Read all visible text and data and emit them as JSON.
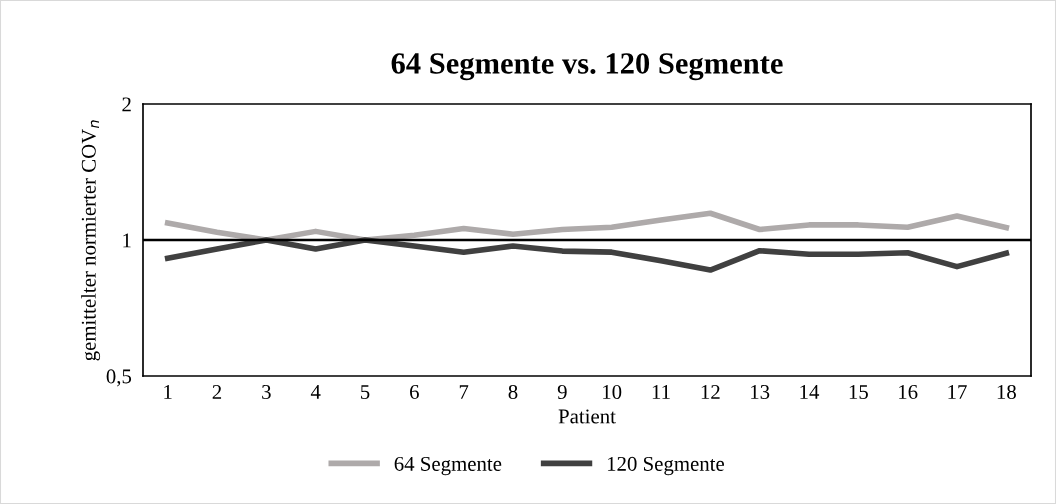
{
  "chart_data": {
    "type": "line",
    "title": "64 Segmente vs. 120 Segmente",
    "xlabel": "Patient",
    "ylabel": "gemittelter normierter COV$_{n}$",
    "categories": [
      "1",
      "2",
      "3",
      "4",
      "5",
      "6",
      "7",
      "8",
      "9",
      "10",
      "11",
      "12",
      "13",
      "14",
      "15",
      "16",
      "17",
      "18"
    ],
    "series": [
      {
        "name": "64 Segmente",
        "color": "#aeaaaa",
        "values": [
          1.09,
          1.04,
          1.0,
          1.045,
          1.0,
          1.025,
          1.06,
          1.03,
          1.055,
          1.067,
          1.107,
          1.146,
          1.055,
          1.08,
          1.08,
          1.067,
          1.13,
          1.065
        ]
      },
      {
        "name": "120 Segmente",
        "color": "#404040",
        "values": [
          0.911,
          0.955,
          1.0,
          0.955,
          1.0,
          0.97,
          0.94,
          0.97,
          0.945,
          0.94,
          0.9,
          0.858,
          0.947,
          0.93,
          0.93,
          0.937,
          0.873,
          0.935
        ]
      }
    ],
    "log": "y",
    "ylim": [
      0.5,
      2
    ],
    "yticks": [
      {
        "value": 0.5,
        "label": "0,5"
      },
      1,
      2
    ],
    "ref_lines": [
      {
        "axis": "y",
        "value": 1,
        "color": "#000000",
        "line_style": "solid"
      }
    ],
    "grid": false,
    "legend": "bottom",
    "marker": "none",
    "line_style": "solid"
  }
}
